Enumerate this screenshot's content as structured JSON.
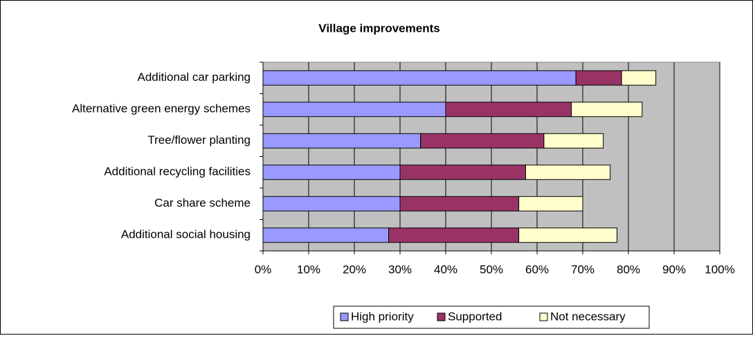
{
  "chart_data": {
    "type": "stacked_bar_horizontal",
    "title": "Village improvements",
    "categories": [
      "Additional car parking",
      "Alternative green energy schemes",
      "Tree/flower planting",
      "Additional recycling facilities",
      "Car share scheme",
      "Additional social housing"
    ],
    "series": [
      {
        "name": "High priority",
        "color": "#9999ff",
        "values": [
          68.5,
          40,
          34.5,
          30,
          30,
          27.5
        ]
      },
      {
        "name": "Supported",
        "color": "#993366",
        "values": [
          10,
          27.5,
          27,
          27.5,
          26,
          28.5
        ]
      },
      {
        "name": "Not necessary",
        "color": "#ffffcc",
        "values": [
          7.5,
          15.5,
          13,
          18.5,
          14,
          21.5
        ]
      }
    ],
    "xlim": [
      0,
      100
    ],
    "xticks": [
      {
        "value": 0,
        "label": "0%"
      },
      {
        "value": 10,
        "label": "10%"
      },
      {
        "value": 20,
        "label": "20%"
      },
      {
        "value": 30,
        "label": "30%"
      },
      {
        "value": 40,
        "label": "40%"
      },
      {
        "value": 50,
        "label": "50%"
      },
      {
        "value": 60,
        "label": "60%"
      },
      {
        "value": 70,
        "label": "70%"
      },
      {
        "value": 80,
        "label": "80%"
      },
      {
        "value": 90,
        "label": "90%"
      },
      {
        "value": 100,
        "label": "100%"
      }
    ],
    "grid": true,
    "plot_background": "#c0c0c0",
    "legend": "bottom"
  }
}
